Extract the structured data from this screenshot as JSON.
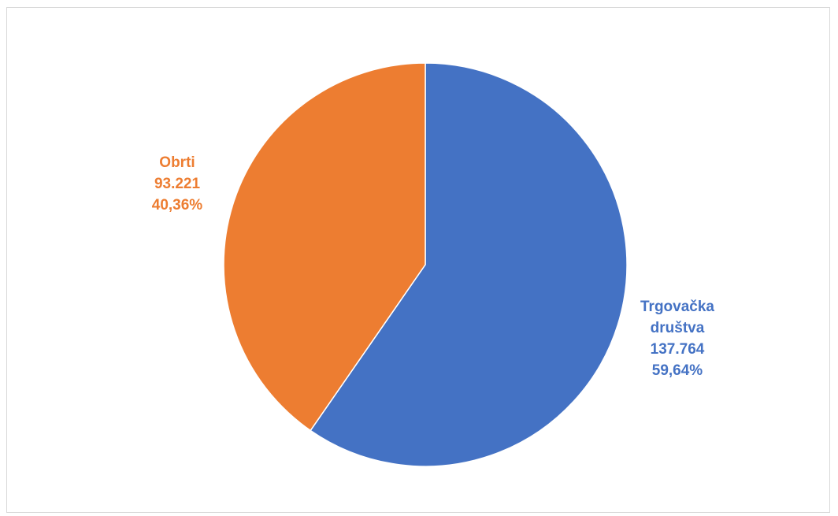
{
  "chart_data": {
    "type": "pie",
    "title": "",
    "colors": [
      "#4472c4",
      "#ed7d31"
    ],
    "slices": [
      {
        "label_lines": [
          "Trgovačka",
          "društva"
        ],
        "value": 137764,
        "value_label": "137.764",
        "percent": 59.64,
        "percent_label": "59,64%",
        "color": "#4472c4"
      },
      {
        "label_lines": [
          "Obrti"
        ],
        "value": 93221,
        "value_label": "93.221",
        "percent": 40.36,
        "percent_label": "40,36%",
        "color": "#ed7d31"
      }
    ],
    "start_angle": "12 o'clock",
    "direction": "clockwise",
    "legend": "none"
  }
}
